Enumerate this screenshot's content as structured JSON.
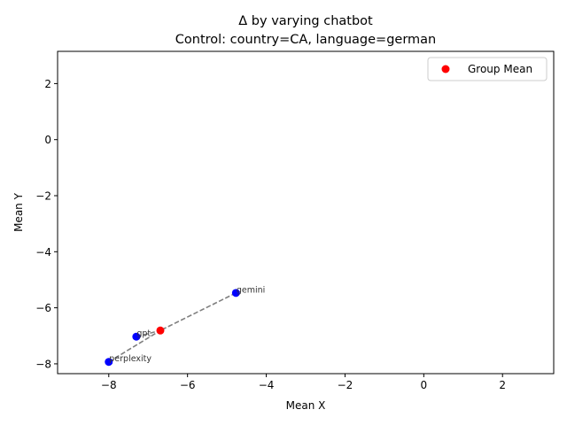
{
  "chart_data": {
    "type": "scatter",
    "title": "Δ by varying chatbot",
    "subtitle": "Control: country=CA, language=german",
    "xlabel": "Mean X",
    "ylabel": "Mean Y",
    "xlim": [
      -9.3,
      3.3
    ],
    "ylim": [
      -8.35,
      3.15
    ],
    "x_ticks": [
      -8,
      -6,
      -4,
      -2,
      0,
      2
    ],
    "y_ticks": [
      -8,
      -6,
      -4,
      -2,
      0,
      2
    ],
    "grid": false,
    "legend_position": "top-right",
    "points": [
      {
        "label": "gemini",
        "x": -4.77,
        "y": -5.47,
        "color": "#0000ff"
      },
      {
        "label": "gpt",
        "x": -7.3,
        "y": -7.03,
        "color": "#0000ff"
      },
      {
        "label": "perplexity",
        "x": -8.0,
        "y": -7.93,
        "color": "#0000ff"
      }
    ],
    "group_mean": {
      "x": -6.69,
      "y": -6.81,
      "color": "#ff0000",
      "legend": "Group Mean"
    },
    "connector_color": "#7f7f7f"
  }
}
